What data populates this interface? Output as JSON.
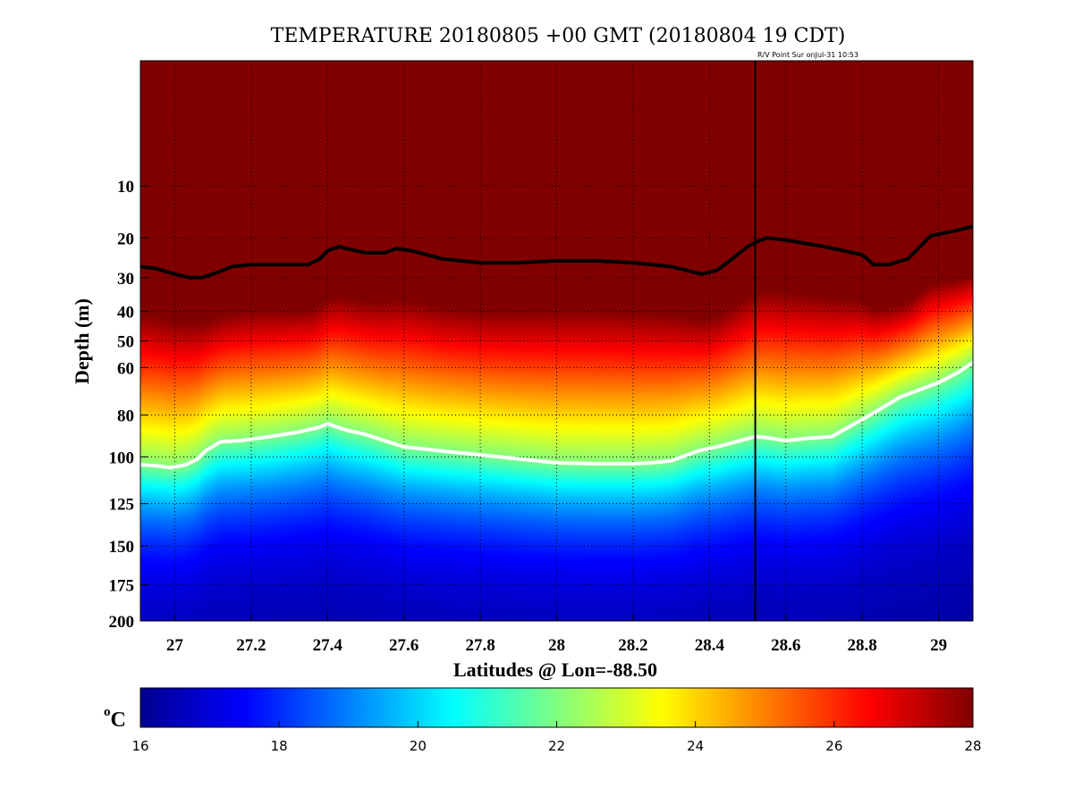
{
  "chart_data": {
    "type": "heatmap",
    "title": "TEMPERATURE 20180805 +00 GMT (20180804 19 CDT)",
    "annotation": "R/V Point Sur onJul-31 10:53",
    "xlabel": "Latitudes @ Lon=-88.50",
    "ylabel": "Depth (m)",
    "xlim": [
      26.91,
      29.09
    ],
    "xticks": [
      "27",
      "27.2",
      "27.4",
      "27.6",
      "27.8",
      "28",
      "28.2",
      "28.4",
      "28.6",
      "28.8",
      "29"
    ],
    "xtick_values": [
      27,
      27.2,
      27.4,
      27.6,
      27.8,
      28,
      28.2,
      28.4,
      28.6,
      28.8,
      29
    ],
    "ylim": [
      200,
      0
    ],
    "yscale": "sqrt",
    "yticks": [
      "10",
      "20",
      "30",
      "40",
      "50",
      "60",
      "80",
      "100",
      "125",
      "150",
      "175",
      "200"
    ],
    "ytick_values": [
      10,
      20,
      30,
      40,
      50,
      60,
      80,
      100,
      125,
      150,
      175,
      200
    ],
    "grid": true,
    "colormap": "jet",
    "colorbar": {
      "label": "C",
      "label_superscript": "o",
      "range": [
        16,
        28
      ],
      "ticks": [
        "16",
        "18",
        "20",
        "22",
        "24",
        "26",
        "28"
      ],
      "tick_values": [
        16,
        18,
        20,
        22,
        24,
        26,
        28
      ]
    },
    "vertical_marker_lat": 28.52,
    "contours": [
      {
        "color": "#000000",
        "lat": [
          26.91,
          26.95,
          27.0,
          27.04,
          27.07,
          27.1,
          27.15,
          27.2,
          27.3,
          27.35,
          27.38,
          27.4,
          27.43,
          27.45,
          27.5,
          27.55,
          27.58,
          27.62,
          27.7,
          27.8,
          27.9,
          28.0,
          28.1,
          28.2,
          28.3,
          28.38,
          28.42,
          28.46,
          28.5,
          28.52,
          28.55,
          28.6,
          28.7,
          28.75,
          28.8,
          28.83,
          28.87,
          28.92,
          28.98,
          29.04,
          29.09
        ],
        "depth": [
          27,
          27.5,
          29,
          30,
          30,
          29,
          27,
          26.5,
          26.5,
          26.5,
          25,
          23,
          22,
          22.5,
          23.5,
          23.5,
          22.5,
          23,
          25,
          26,
          26,
          25.5,
          25.5,
          26,
          27,
          29,
          28,
          25,
          22,
          21,
          20,
          20.5,
          22,
          23,
          24,
          26.5,
          26.5,
          25,
          19.5,
          18.5,
          17.5
        ]
      },
      {
        "color": "#ffffff",
        "lat": [
          26.91,
          26.95,
          26.99,
          27.03,
          27.06,
          27.08,
          27.12,
          27.17,
          27.25,
          27.32,
          27.38,
          27.4,
          27.45,
          27.5,
          27.55,
          27.6,
          27.65,
          27.7,
          27.8,
          27.9,
          28.0,
          28.1,
          28.2,
          28.25,
          28.3,
          28.37,
          28.42,
          28.46,
          28.5,
          28.52,
          28.55,
          28.6,
          28.65,
          28.72,
          28.8,
          28.85,
          28.9,
          28.95,
          29.0,
          29.05,
          29.09
        ],
        "depth": [
          104,
          104.5,
          105.5,
          104,
          101,
          97,
          92.5,
          92,
          90,
          88,
          85.5,
          84,
          87,
          89,
          92,
          95,
          96,
          97,
          99,
          101,
          103,
          103.5,
          103.5,
          103,
          102,
          97,
          95,
          93,
          91,
          90,
          90.5,
          92,
          91,
          90,
          82,
          77,
          72,
          69,
          66,
          62,
          58
        ]
      }
    ]
  }
}
